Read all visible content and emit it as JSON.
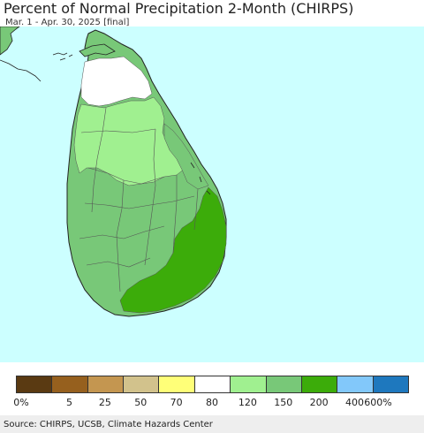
{
  "header": {
    "title": "Percent of Normal Precipitation 2-Month (CHIRPS)",
    "subtitle": "Mar. 1 - Apr. 30, 2025 [final]"
  },
  "map": {
    "region": "Sri Lanka",
    "ocean_color": "#ccffff",
    "region_colors": {
      "below_80_to_120": "#ffffff",
      "120_to_150": "#a0f090",
      "150_to_200": "#78c878",
      "200_to_400": "#3cac0a"
    }
  },
  "legend": {
    "colors": [
      "#5a3a12",
      "#96601e",
      "#c49650",
      "#d2c28c",
      "#ffff78",
      "#ffffff",
      "#a0f090",
      "#78c878",
      "#3cac0a",
      "#82c8fa",
      "#1e78be"
    ],
    "labels": [
      "0%",
      "5",
      "25",
      "50",
      "70",
      "80",
      "120",
      "150",
      "200",
      "400",
      "600%"
    ]
  },
  "footer": {
    "source": "Source: CHIRPS, UCSB, Climate Hazards Center"
  }
}
